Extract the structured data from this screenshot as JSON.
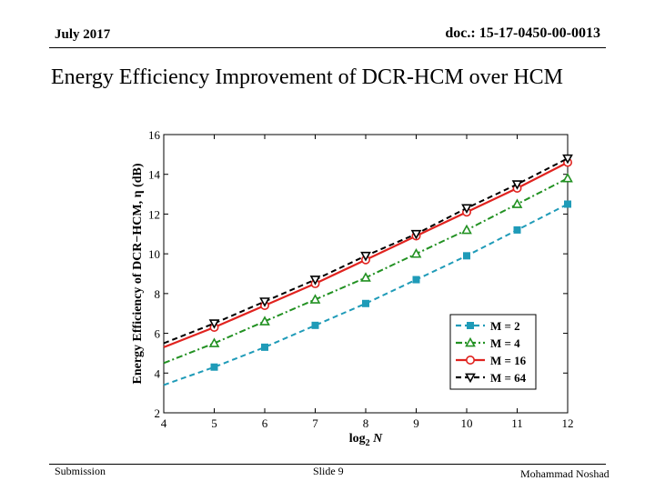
{
  "header": {
    "date": "July 2017",
    "doc_id": "doc.: 15-17-0450-00-0013"
  },
  "slide": {
    "title": "Energy Efficiency Improvement of DCR-HCM over HCM"
  },
  "footer": {
    "left": "Submission",
    "center": "Slide 9",
    "right": "Mohammad Noshad"
  },
  "chart_data": {
    "type": "line",
    "title": "",
    "xlabel": "log",
    "xlabel_sub": "2",
    "xlabel_var": "N",
    "ylabel": "Energy Efficiency of DCR−HCM, η (dB)",
    "xlim": [
      4,
      12
    ],
    "ylim": [
      2,
      16
    ],
    "x_ticks": [
      4,
      5,
      6,
      7,
      8,
      9,
      10,
      11,
      12
    ],
    "y_ticks": [
      2,
      4,
      6,
      8,
      10,
      12,
      14,
      16
    ],
    "x": [
      4,
      5,
      6,
      7,
      8,
      9,
      10,
      11,
      12
    ],
    "legend_position": "bottom-right",
    "series": [
      {
        "name": "M = 2",
        "color": "#1f9bb8",
        "dash": "dashed",
        "marker": "square",
        "values": [
          3.4,
          4.3,
          5.3,
          6.4,
          7.5,
          8.7,
          9.9,
          11.2,
          12.5
        ]
      },
      {
        "name": "M = 4",
        "color": "#229122",
        "dash": "dashdot",
        "marker": "triangle-up",
        "values": [
          4.5,
          5.5,
          6.6,
          7.7,
          8.8,
          10.0,
          11.2,
          12.5,
          13.8
        ]
      },
      {
        "name": "M = 16",
        "color": "#e0231f",
        "dash": "solid",
        "marker": "circle",
        "values": [
          5.3,
          6.3,
          7.4,
          8.5,
          9.7,
          10.9,
          12.1,
          13.3,
          14.6
        ]
      },
      {
        "name": "M = 64",
        "color": "#000000",
        "dash": "dashed",
        "marker": "triangle-down",
        "values": [
          5.5,
          6.5,
          7.6,
          8.7,
          9.9,
          11.0,
          12.3,
          13.5,
          14.8
        ]
      }
    ]
  }
}
